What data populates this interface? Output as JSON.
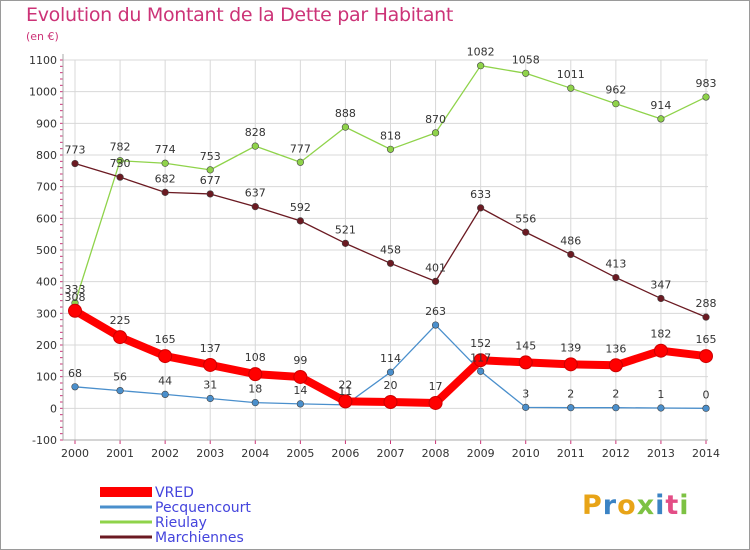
{
  "title": "Evolution du Montant de la Dette par Habitant",
  "unit": "(en €)",
  "logo_letters": [
    "P",
    "r",
    "o",
    "x",
    "i",
    "t",
    "i"
  ],
  "logo_colors": [
    "#e8a417",
    "#3b83c4",
    "#e8a417",
    "#7dc243",
    "#3b83c4",
    "#e34d86",
    "#7dc243"
  ],
  "chart_data": {
    "type": "line",
    "x": [
      2000,
      2001,
      2002,
      2003,
      2004,
      2005,
      2006,
      2007,
      2008,
      2009,
      2010,
      2011,
      2012,
      2013,
      2014
    ],
    "ylim": [
      -100,
      1100
    ],
    "yticks": [
      -100,
      0,
      100,
      200,
      300,
      400,
      500,
      600,
      700,
      800,
      900,
      1000,
      1100
    ],
    "grid": true,
    "legend_position": "bottom-left",
    "series": [
      {
        "name": "VRED",
        "color": "#ff0000",
        "values": [
          308,
          225,
          165,
          137,
          108,
          99,
          22,
          20,
          17,
          152,
          145,
          139,
          136,
          182,
          165
        ]
      },
      {
        "name": "Pecquencourt",
        "color": "#4a8fcc",
        "values": [
          68,
          56,
          44,
          31,
          18,
          14,
          11,
          114,
          263,
          117,
          3,
          2,
          2,
          1,
          0
        ]
      },
      {
        "name": "Rieulay",
        "color": "#8fd34a",
        "values": [
          333,
          782,
          774,
          753,
          828,
          777,
          888,
          818,
          870,
          1082,
          1058,
          1011,
          962,
          914,
          983
        ]
      },
      {
        "name": "Marchiennes",
        "color": "#6b1a22",
        "values": [
          773,
          730,
          682,
          677,
          637,
          592,
          521,
          458,
          401,
          633,
          556,
          486,
          413,
          347,
          288
        ]
      }
    ],
    "point_labels": [
      {
        "text": "308",
        "anchor": [
          2000,
          308
        ],
        "dx": 0,
        "dy": -10
      },
      {
        "text": "225",
        "anchor": [
          2001,
          225
        ],
        "dx": 0,
        "dy": -13
      },
      {
        "text": "165",
        "anchor": [
          2002,
          165
        ],
        "dx": 0,
        "dy": -13
      },
      {
        "text": "137",
        "anchor": [
          2003,
          137
        ],
        "dx": 0,
        "dy": -13
      },
      {
        "text": "108",
        "anchor": [
          2004,
          108
        ],
        "dx": 0,
        "dy": -13
      },
      {
        "text": "99",
        "anchor": [
          2005,
          99
        ],
        "dx": 0,
        "dy": -13
      },
      {
        "text": "22",
        "anchor": [
          2006,
          22
        ],
        "dx": 0,
        "dy": -13
      },
      {
        "text": "20",
        "anchor": [
          2007,
          20
        ],
        "dx": 0,
        "dy": -13
      },
      {
        "text": "17",
        "anchor": [
          2008,
          17
        ],
        "dx": 0,
        "dy": -13
      },
      {
        "text": "152",
        "anchor": [
          2009,
          152
        ],
        "dx": 0,
        "dy": -13
      },
      {
        "text": "145",
        "anchor": [
          2010,
          145
        ],
        "dx": 0,
        "dy": -13
      },
      {
        "text": "139",
        "anchor": [
          2011,
          139
        ],
        "dx": 0,
        "dy": -13
      },
      {
        "text": "136",
        "anchor": [
          2012,
          136
        ],
        "dx": 0,
        "dy": -13
      },
      {
        "text": "182",
        "anchor": [
          2013,
          182
        ],
        "dx": 0,
        "dy": -13
      },
      {
        "text": "165",
        "anchor": [
          2014,
          165
        ],
        "dx": 0,
        "dy": -13
      },
      {
        "text": "68",
        "anchor": [
          2000,
          68
        ],
        "dx": 0,
        "dy": -10
      },
      {
        "text": "56",
        "anchor": [
          2001,
          56
        ],
        "dx": 0,
        "dy": -10
      },
      {
        "text": "44",
        "anchor": [
          2002,
          44
        ],
        "dx": 0,
        "dy": -10
      },
      {
        "text": "31",
        "anchor": [
          2003,
          31
        ],
        "dx": 0,
        "dy": -10
      },
      {
        "text": "18",
        "anchor": [
          2004,
          18
        ],
        "dx": 0,
        "dy": -10
      },
      {
        "text": "14",
        "anchor": [
          2005,
          14
        ],
        "dx": 0,
        "dy": -10
      },
      {
        "text": "11",
        "anchor": [
          2006,
          11
        ],
        "dx": 0,
        "dy": -10
      },
      {
        "text": "114",
        "anchor": [
          2007,
          114
        ],
        "dx": 0,
        "dy": -10
      },
      {
        "text": "263",
        "anchor": [
          2008,
          263
        ],
        "dx": 0,
        "dy": -10
      },
      {
        "text": "117",
        "anchor": [
          2009,
          117
        ],
        "dx": 0,
        "dy": -10
      },
      {
        "text": "3",
        "anchor": [
          2010,
          3
        ],
        "dx": 0,
        "dy": -10
      },
      {
        "text": "2",
        "anchor": [
          2011,
          2
        ],
        "dx": 0,
        "dy": -10
      },
      {
        "text": "2",
        "anchor": [
          2012,
          2
        ],
        "dx": 0,
        "dy": -10
      },
      {
        "text": "1",
        "anchor": [
          2013,
          1
        ],
        "dx": 0,
        "dy": -10
      },
      {
        "text": "0",
        "anchor": [
          2014,
          0
        ],
        "dx": 0,
        "dy": -10
      },
      {
        "text": "333",
        "anchor": [
          2000,
          333
        ],
        "dx": 0,
        "dy": -10
      },
      {
        "text": "782",
        "anchor": [
          2001,
          782
        ],
        "dx": 0,
        "dy": -10
      },
      {
        "text": "774",
        "anchor": [
          2002,
          774
        ],
        "dx": 0,
        "dy": -10
      },
      {
        "text": "753",
        "anchor": [
          2003,
          753
        ],
        "dx": 0,
        "dy": -10
      },
      {
        "text": "828",
        "anchor": [
          2004,
          828
        ],
        "dx": 0,
        "dy": -10
      },
      {
        "text": "777",
        "anchor": [
          2005,
          777
        ],
        "dx": 0,
        "dy": -10
      },
      {
        "text": "888",
        "anchor": [
          2006,
          888
        ],
        "dx": 0,
        "dy": -10
      },
      {
        "text": "818",
        "anchor": [
          2007,
          818
        ],
        "dx": 0,
        "dy": -10
      },
      {
        "text": "870",
        "anchor": [
          2008,
          870
        ],
        "dx": 0,
        "dy": -10
      },
      {
        "text": "1082",
        "anchor": [
          2009,
          1082
        ],
        "dx": 0,
        "dy": -10
      },
      {
        "text": "1058",
        "anchor": [
          2010,
          1058
        ],
        "dx": 0,
        "dy": -10
      },
      {
        "text": "1011",
        "anchor": [
          2011,
          1011
        ],
        "dx": 0,
        "dy": -10
      },
      {
        "text": "962",
        "anchor": [
          2012,
          962
        ],
        "dx": 0,
        "dy": -10
      },
      {
        "text": "914",
        "anchor": [
          2013,
          914
        ],
        "dx": 0,
        "dy": -10
      },
      {
        "text": "983",
        "anchor": [
          2014,
          983
        ],
        "dx": 0,
        "dy": -10
      },
      {
        "text": "773",
        "anchor": [
          2000,
          773
        ],
        "dx": 0,
        "dy": -10
      },
      {
        "text": "730",
        "anchor": [
          2001,
          730
        ],
        "dx": 0,
        "dy": -10
      },
      {
        "text": "682",
        "anchor": [
          2002,
          682
        ],
        "dx": 0,
        "dy": -10
      },
      {
        "text": "677",
        "anchor": [
          2003,
          677
        ],
        "dx": 0,
        "dy": -10
      },
      {
        "text": "637",
        "anchor": [
          2004,
          637
        ],
        "dx": 0,
        "dy": -10
      },
      {
        "text": "592",
        "anchor": [
          2005,
          592
        ],
        "dx": 0,
        "dy": -10
      },
      {
        "text": "521",
        "anchor": [
          2006,
          521
        ],
        "dx": 0,
        "dy": -10
      },
      {
        "text": "458",
        "anchor": [
          2007,
          458
        ],
        "dx": 0,
        "dy": -10
      },
      {
        "text": "401",
        "anchor": [
          2008,
          401
        ],
        "dx": 0,
        "dy": -10
      },
      {
        "text": "633",
        "anchor": [
          2009,
          633
        ],
        "dx": 0,
        "dy": -10
      },
      {
        "text": "556",
        "anchor": [
          2010,
          556
        ],
        "dx": 0,
        "dy": -10
      },
      {
        "text": "486",
        "anchor": [
          2011,
          486
        ],
        "dx": 0,
        "dy": -10
      },
      {
        "text": "413",
        "anchor": [
          2012,
          413
        ],
        "dx": 0,
        "dy": -10
      },
      {
        "text": "347",
        "anchor": [
          2013,
          347
        ],
        "dx": 0,
        "dy": -10
      },
      {
        "text": "288",
        "anchor": [
          2014,
          288
        ],
        "dx": 0,
        "dy": -10
      }
    ]
  }
}
